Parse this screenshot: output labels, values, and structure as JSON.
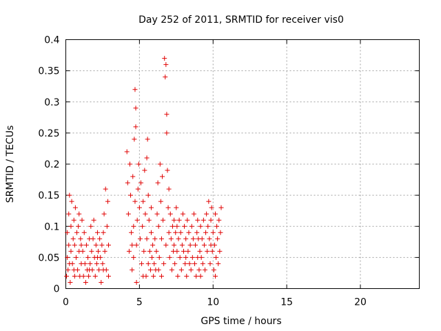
{
  "chart_data": {
    "type": "scatter",
    "title": "Day 252 of 2011, SRMTID for receiver vis0",
    "xlabel": "GPS time / hours",
    "ylabel": "SRMTID / TECUs",
    "xlim": [
      0,
      24
    ],
    "ylim": [
      0,
      0.4
    ],
    "xticks": [
      0,
      5,
      10,
      15,
      20
    ],
    "yticks": [
      0,
      0.05,
      0.1,
      0.15,
      0.2,
      0.25,
      0.3,
      0.35,
      0.4
    ],
    "ytick_labels": [
      "0",
      "0.05",
      "0.1",
      "0.15",
      "0.2",
      "0.25",
      "0.3",
      "0.35",
      "0.4"
    ],
    "xtick_labels": [
      "0",
      "5",
      "10",
      "15",
      "20"
    ],
    "grid": true,
    "marker": "+",
    "color": "#e00000",
    "series": [
      {
        "name": "vis0",
        "points": [
          [
            0.05,
            0.02
          ],
          [
            0.1,
            0.05
          ],
          [
            0.1,
            0.09
          ],
          [
            0.15,
            0.03
          ],
          [
            0.2,
            0.12
          ],
          [
            0.2,
            0.07
          ],
          [
            0.25,
            0.15
          ],
          [
            0.3,
            0.01
          ],
          [
            0.35,
            0.06
          ],
          [
            0.35,
            0.1
          ],
          [
            0.4,
            0.14
          ],
          [
            0.45,
            0.04
          ],
          [
            0.5,
            0.08
          ],
          [
            0.55,
            0.11
          ],
          [
            0.6,
            0.02
          ],
          [
            0.6,
            0.07
          ],
          [
            0.65,
            0.13
          ],
          [
            0.7,
            0.05
          ],
          [
            0.75,
            0.09
          ],
          [
            0.8,
            0.03
          ],
          [
            0.85,
            0.1
          ],
          [
            0.9,
            0.06
          ],
          [
            0.9,
            0.12
          ],
          [
            0.95,
            0.02
          ],
          [
            1.0,
            0.08
          ],
          [
            1.05,
            0.04
          ],
          [
            1.1,
            0.11
          ],
          [
            1.15,
            0.06
          ],
          [
            1.2,
            0.02
          ],
          [
            1.25,
            0.09
          ],
          [
            1.3,
            0.04
          ],
          [
            1.35,
            0.01
          ],
          [
            1.4,
            0.07
          ],
          [
            1.45,
            0.03
          ],
          [
            1.5,
            0.05
          ],
          [
            1.55,
            0.02
          ],
          [
            1.6,
            0.08
          ],
          [
            1.65,
            0.04
          ],
          [
            1.7,
            0.1
          ],
          [
            1.75,
            0.06
          ],
          [
            1.8,
            0.03
          ],
          [
            1.85,
            0.08
          ],
          [
            1.9,
            0.11
          ],
          [
            1.95,
            0.05
          ],
          [
            2.0,
            0.02
          ],
          [
            2.05,
            0.07
          ],
          [
            2.1,
            0.04
          ],
          [
            2.15,
            0.09
          ],
          [
            2.2,
            0.06
          ],
          [
            2.25,
            0.03
          ],
          [
            2.3,
            0.08
          ],
          [
            2.35,
            0.05
          ],
          [
            2.4,
            0.01
          ],
          [
            2.45,
            0.07
          ],
          [
            2.5,
            0.04
          ],
          [
            2.55,
            0.09
          ],
          [
            2.6,
            0.12
          ],
          [
            2.65,
            0.06
          ],
          [
            2.7,
            0.16
          ],
          [
            2.75,
            0.03
          ],
          [
            2.8,
            0.1
          ],
          [
            2.85,
            0.14
          ],
          [
            2.9,
            0.02
          ],
          [
            2.9,
            0.07
          ],
          [
            0.25,
            0.04
          ],
          [
            0.55,
            0.03
          ],
          [
            1.05,
            0.07
          ],
          [
            1.6,
            0.03
          ],
          [
            2.15,
            0.05
          ],
          [
            2.55,
            0.03
          ],
          [
            4.15,
            0.22
          ],
          [
            4.2,
            0.17
          ],
          [
            4.25,
            0.12
          ],
          [
            4.3,
            0.06
          ],
          [
            4.35,
            0.2
          ],
          [
            4.4,
            0.15
          ],
          [
            4.45,
            0.09
          ],
          [
            4.5,
            0.03
          ],
          [
            4.55,
            0.18
          ],
          [
            4.6,
            0.1
          ],
          [
            4.6,
            0.05
          ],
          [
            4.65,
            0.24
          ],
          [
            4.7,
            0.32
          ],
          [
            4.7,
            0.14
          ],
          [
            4.75,
            0.29
          ],
          [
            4.75,
            0.26
          ],
          [
            4.8,
            0.07
          ],
          [
            4.8,
            0.01
          ],
          [
            4.85,
            0.11
          ],
          [
            4.9,
            0.16
          ],
          [
            4.95,
            0.2
          ],
          [
            5.0,
            0.13
          ],
          [
            5.05,
            0.08
          ],
          [
            5.1,
            0.17
          ],
          [
            5.15,
            0.04
          ],
          [
            5.2,
            0.1
          ],
          [
            5.25,
            0.14
          ],
          [
            5.3,
            0.06
          ],
          [
            5.35,
            0.19
          ],
          [
            5.4,
            0.12
          ],
          [
            5.45,
            0.02
          ],
          [
            5.5,
            0.08
          ],
          [
            5.5,
            0.21
          ],
          [
            5.55,
            0.24
          ],
          [
            5.6,
            0.15
          ],
          [
            5.6,
            0.04
          ],
          [
            5.65,
            0.11
          ],
          [
            5.7,
            0.06
          ],
          [
            5.75,
            0.03
          ],
          [
            5.8,
            0.09
          ],
          [
            5.85,
            0.05
          ],
          [
            5.9,
            0.07
          ],
          [
            5.95,
            0.02
          ],
          [
            6.0,
            0.04
          ],
          [
            6.05,
            0.08
          ],
          [
            6.1,
            0.03
          ],
          [
            6.15,
            0.06
          ],
          [
            6.2,
            0.12
          ],
          [
            6.25,
            0.17
          ],
          [
            6.3,
            0.1
          ],
          [
            6.35,
            0.05
          ],
          [
            6.4,
            0.2
          ],
          [
            6.45,
            0.14
          ],
          [
            6.5,
            0.08
          ],
          [
            6.55,
            0.18
          ],
          [
            6.6,
            0.11
          ],
          [
            6.65,
            0.04
          ],
          [
            6.7,
            0.37
          ],
          [
            6.75,
            0.34
          ],
          [
            6.8,
            0.36
          ],
          [
            6.8,
            0.07
          ],
          [
            6.85,
            0.28
          ],
          [
            6.85,
            0.25
          ],
          [
            6.9,
            0.19
          ],
          [
            6.95,
            0.13
          ],
          [
            7.0,
            0.09
          ],
          [
            7.0,
            0.16
          ],
          [
            7.05,
            0.05
          ],
          [
            7.1,
            0.12
          ],
          [
            7.15,
            0.08
          ],
          [
            7.2,
            0.03
          ],
          [
            7.25,
            0.1
          ],
          [
            7.3,
            0.06
          ],
          [
            7.35,
            0.11
          ],
          [
            7.4,
            0.04
          ],
          [
            7.45,
            0.09
          ],
          [
            7.5,
            0.13
          ],
          [
            7.55,
            0.06
          ],
          [
            7.6,
            0.02
          ],
          [
            7.65,
            0.08
          ],
          [
            7.7,
            0.11
          ],
          [
            7.75,
            0.05
          ],
          [
            7.8,
            0.09
          ],
          [
            7.85,
            0.03
          ],
          [
            7.9,
            0.07
          ],
          [
            7.95,
            0.12
          ],
          [
            8.0,
            0.06
          ],
          [
            8.05,
            0.1
          ],
          [
            8.1,
            0.04
          ],
          [
            8.15,
            0.08
          ],
          [
            8.2,
            0.02
          ],
          [
            8.25,
            0.11
          ],
          [
            8.3,
            0.06
          ],
          [
            8.35,
            0.09
          ],
          [
            8.4,
            0.04
          ],
          [
            8.45,
            0.07
          ],
          [
            8.5,
            0.03
          ],
          [
            8.55,
            0.1
          ],
          [
            8.6,
            0.05
          ],
          [
            8.65,
            0.08
          ],
          [
            8.7,
            0.12
          ],
          [
            8.75,
            0.04
          ],
          [
            8.8,
            0.07
          ],
          [
            8.85,
            0.02
          ],
          [
            8.9,
            0.09
          ],
          [
            8.95,
            0.05
          ],
          [
            9.0,
            0.08
          ],
          [
            9.05,
            0.03
          ],
          [
            9.1,
            0.06
          ],
          [
            9.15,
            0.1
          ],
          [
            9.2,
            0.05
          ],
          [
            9.25,
            0.08
          ],
          [
            9.3,
            0.04
          ],
          [
            9.35,
            0.11
          ],
          [
            9.4,
            0.07
          ],
          [
            9.45,
            0.03
          ],
          [
            9.5,
            0.09
          ],
          [
            9.55,
            0.12
          ],
          [
            9.6,
            0.06
          ],
          [
            9.65,
            0.1
          ],
          [
            9.7,
            0.14
          ],
          [
            9.75,
            0.08
          ],
          [
            9.8,
            0.04
          ],
          [
            9.85,
            0.11
          ],
          [
            9.9,
            0.13
          ],
          [
            9.95,
            0.06
          ],
          [
            10.0,
            0.09
          ],
          [
            10.05,
            0.03
          ],
          [
            10.1,
            0.07
          ],
          [
            10.15,
            0.12
          ],
          [
            10.2,
            0.05
          ],
          [
            10.25,
            0.1
          ],
          [
            10.3,
            0.08
          ],
          [
            10.35,
            0.04
          ],
          [
            10.4,
            0.11
          ],
          [
            10.45,
            0.06
          ],
          [
            10.5,
            0.09
          ],
          [
            10.55,
            0.13
          ],
          [
            6.3,
            0.03
          ],
          [
            7.35,
            0.07
          ],
          [
            8.15,
            0.05
          ],
          [
            9.15,
            0.02
          ],
          [
            9.85,
            0.07
          ],
          [
            10.15,
            0.02
          ],
          [
            4.5,
            0.07
          ],
          [
            5.25,
            0.02
          ],
          [
            5.8,
            0.13
          ],
          [
            6.5,
            0.02
          ],
          [
            7.55,
            0.1
          ],
          [
            8.95,
            0.11
          ]
        ]
      }
    ]
  }
}
